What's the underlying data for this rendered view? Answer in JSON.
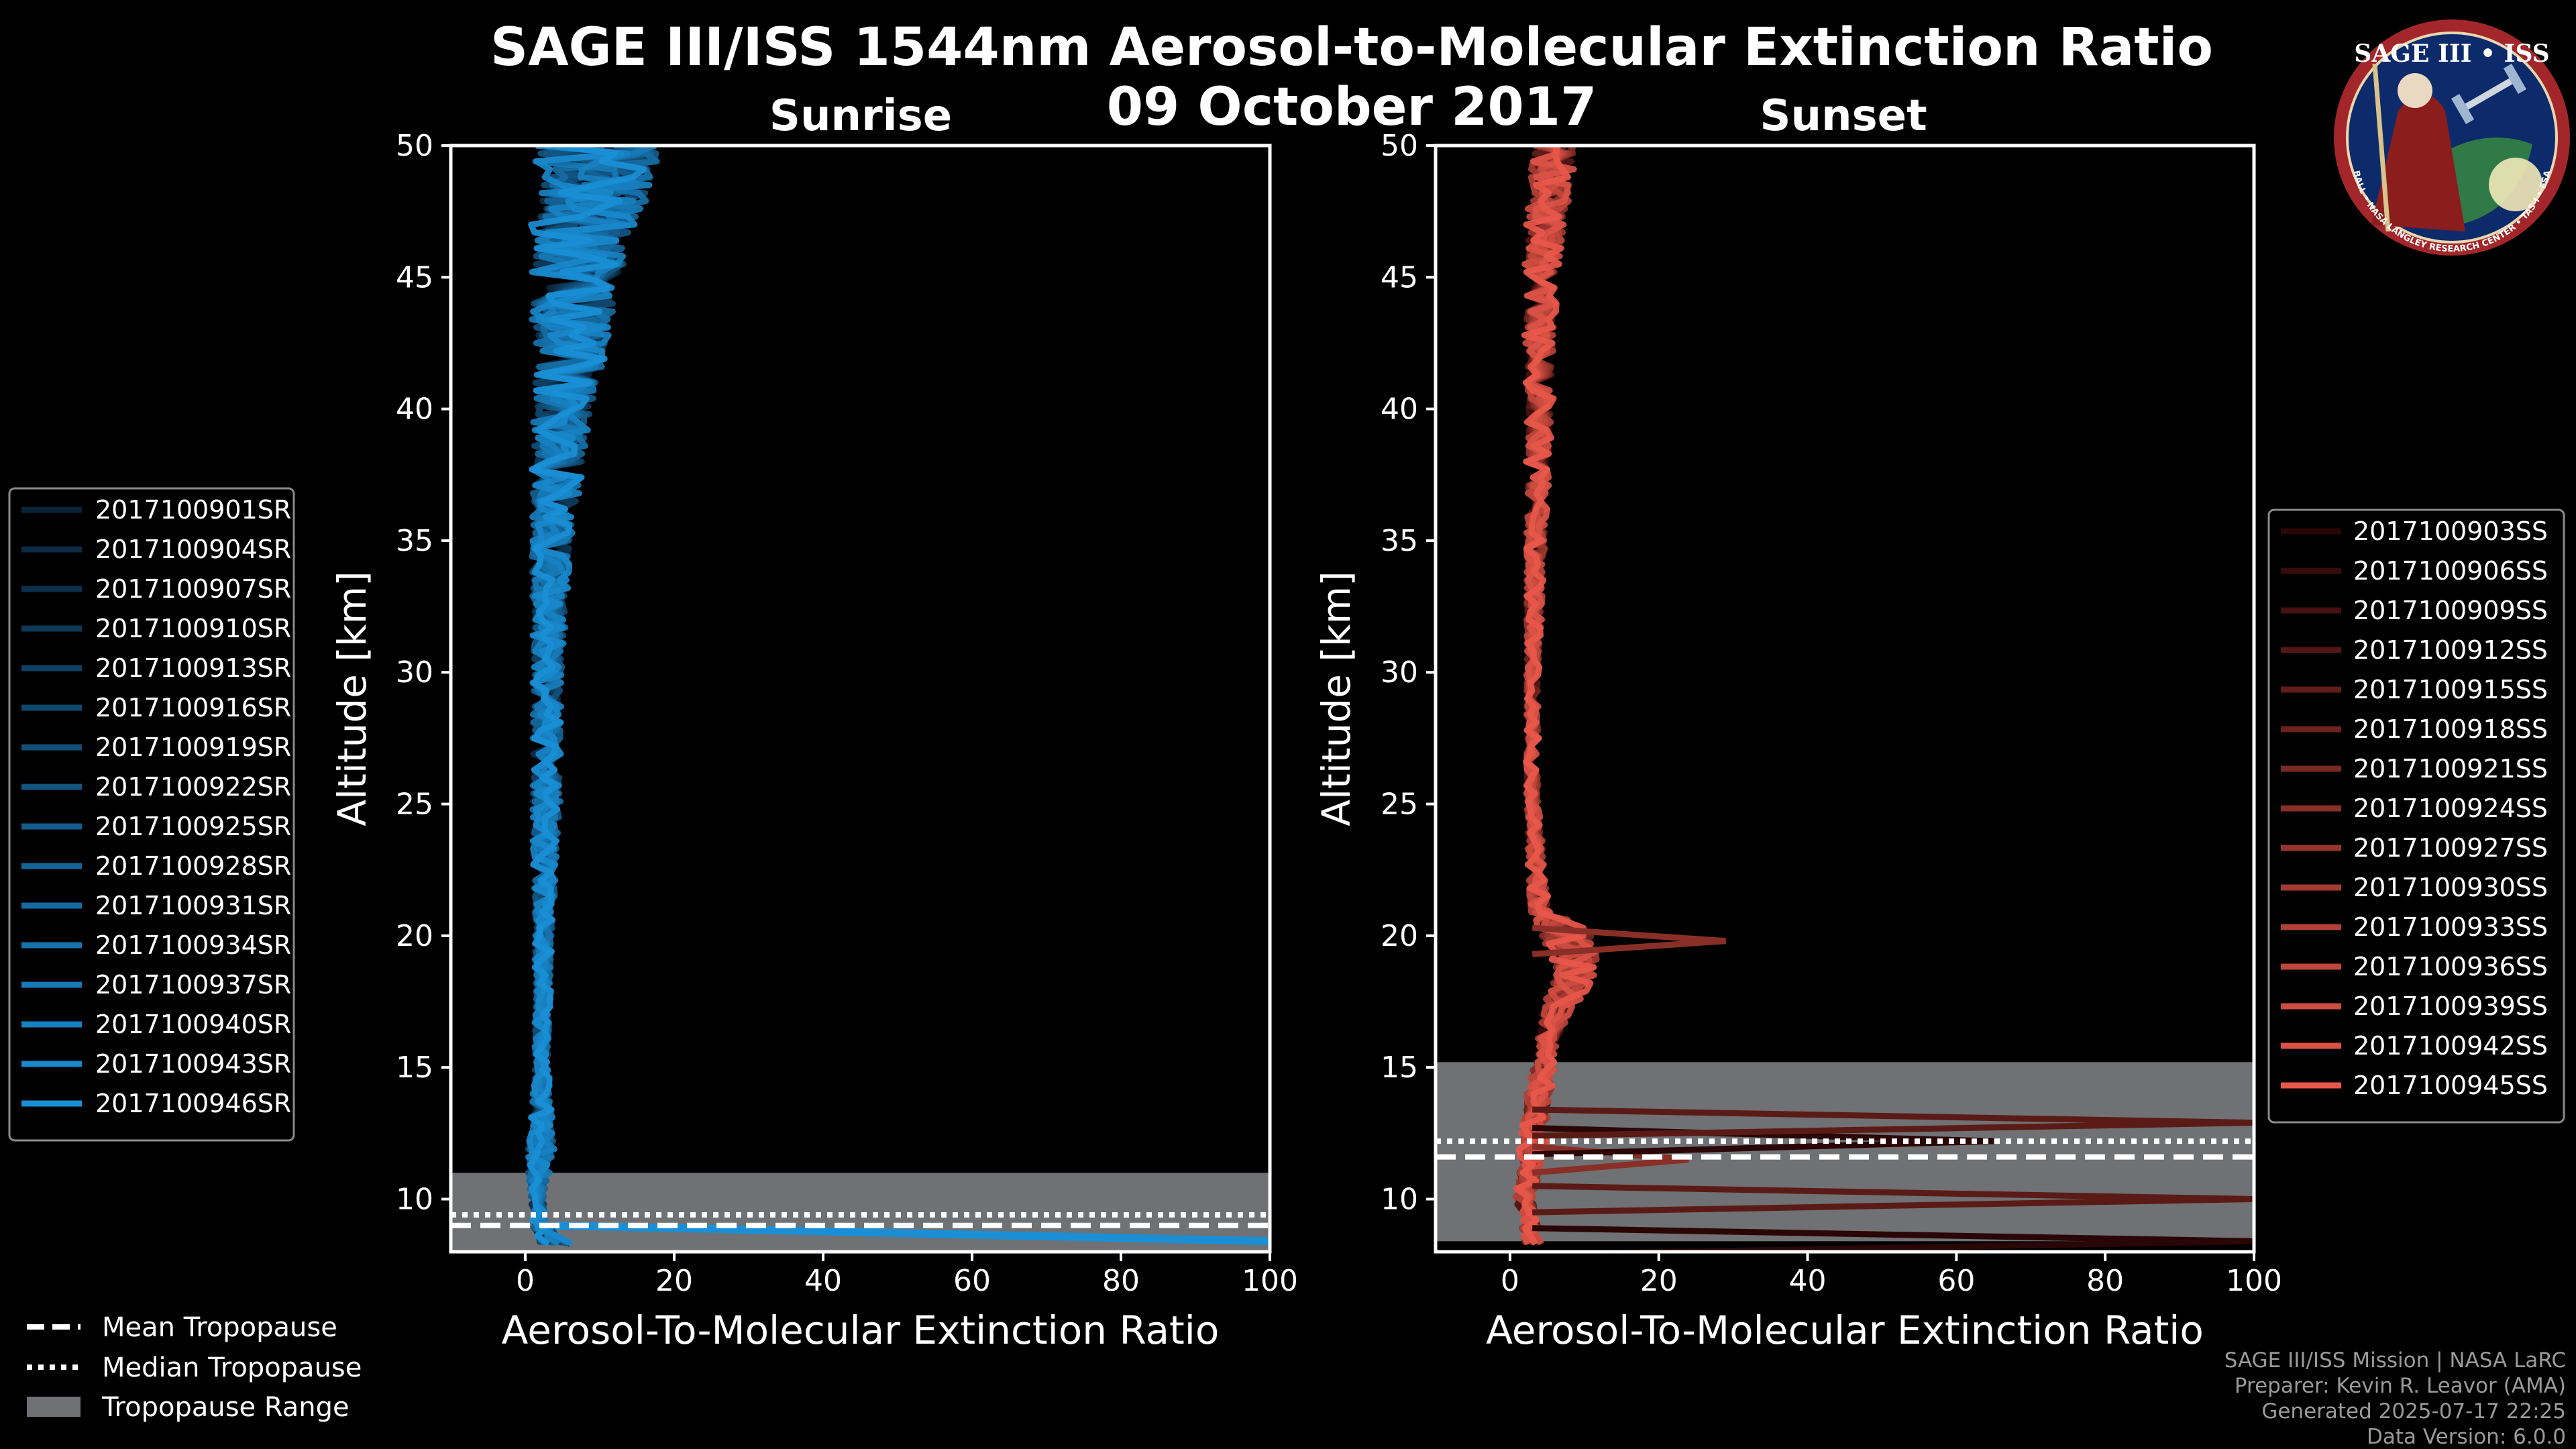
{
  "title": {
    "line1": "SAGE III/ISS 1544nm Aerosol-to-Molecular Extinction Ratio",
    "line2": "09 October 2017"
  },
  "chart_data": [
    {
      "type": "line",
      "panel": "sunrise",
      "title": "Sunrise",
      "xlabel": "Aerosol-To-Molecular Extinction Ratio",
      "ylabel": "Altitude [km]",
      "xlim": [
        -10,
        100
      ],
      "ylim": [
        8,
        50
      ],
      "xticks": [
        0,
        20,
        40,
        60,
        80,
        100
      ],
      "yticks": [
        10,
        15,
        20,
        25,
        30,
        35,
        40,
        45,
        50
      ],
      "color_from": "#0b2338",
      "color_to": "#1a8fd6",
      "tropopause": {
        "mean": 9.0,
        "median": 9.4,
        "range": [
          8.0,
          11.0
        ]
      },
      "profile_envelope": {
        "altitude": [
          8.4,
          9,
          10,
          11,
          12,
          15,
          20,
          25,
          30,
          35,
          40,
          45,
          50
        ],
        "median_ratio": [
          4,
          2,
          1.6,
          1.8,
          2,
          2.2,
          2.5,
          2.8,
          3,
          3.5,
          5,
          7,
          10
        ],
        "spread": [
          3,
          1.5,
          1.2,
          2,
          2.5,
          1.2,
          1.5,
          2.5,
          2.5,
          3.5,
          5,
          8,
          11
        ]
      },
      "series": [
        {
          "name": "2017100901SR"
        },
        {
          "name": "2017100904SR"
        },
        {
          "name": "2017100907SR"
        },
        {
          "name": "2017100910SR"
        },
        {
          "name": "2017100913SR"
        },
        {
          "name": "2017100916SR"
        },
        {
          "name": "2017100919SR"
        },
        {
          "name": "2017100922SR"
        },
        {
          "name": "2017100925SR"
        },
        {
          "name": "2017100928SR"
        },
        {
          "name": "2017100931SR"
        },
        {
          "name": "2017100934SR"
        },
        {
          "name": "2017100937SR"
        },
        {
          "name": "2017100940SR"
        },
        {
          "name": "2017100943SR"
        },
        {
          "name": "2017100946SR"
        }
      ]
    },
    {
      "type": "line",
      "panel": "sunset",
      "title": "Sunset",
      "xlabel": "Aerosol-To-Molecular Extinction Ratio",
      "ylabel": "Altitude [km]",
      "xlim": [
        -10,
        100
      ],
      "ylim": [
        8,
        50
      ],
      "xticks": [
        0,
        20,
        40,
        60,
        80,
        100
      ],
      "yticks": [
        10,
        15,
        20,
        25,
        30,
        35,
        40,
        45,
        50
      ],
      "color_from": "#2a0606",
      "color_to": "#e8584a",
      "tropopause": {
        "mean": 11.6,
        "median": 12.2,
        "range": [
          8.4,
          15.2
        ]
      },
      "profile_envelope": {
        "altitude": [
          8.4,
          10,
          12,
          14,
          16,
          17,
          18,
          19,
          20,
          21,
          25,
          30,
          35,
          40,
          45,
          50
        ],
        "median_ratio": [
          3,
          2,
          3,
          4,
          5,
          6,
          8,
          9,
          8,
          4,
          3,
          3,
          3.5,
          4,
          4,
          6
        ],
        "spread": [
          3,
          3,
          4,
          4,
          3,
          5,
          6,
          7,
          9,
          3,
          2,
          2,
          3,
          4,
          5,
          7
        ]
      },
      "outliers": [
        {
          "altitude": 8.4,
          "ratio": 100
        },
        {
          "altitude": 10.0,
          "ratio": 100
        },
        {
          "altitude": 11.5,
          "ratio": 24
        },
        {
          "altitude": 12.2,
          "ratio": 65
        },
        {
          "altitude": 12.9,
          "ratio": 100
        },
        {
          "altitude": 19.8,
          "ratio": 29
        }
      ],
      "series": [
        {
          "name": "2017100903SS"
        },
        {
          "name": "2017100906SS"
        },
        {
          "name": "2017100909SS"
        },
        {
          "name": "2017100912SS"
        },
        {
          "name": "2017100915SS"
        },
        {
          "name": "2017100918SS"
        },
        {
          "name": "2017100921SS"
        },
        {
          "name": "2017100924SS"
        },
        {
          "name": "2017100927SS"
        },
        {
          "name": "2017100930SS"
        },
        {
          "name": "2017100933SS"
        },
        {
          "name": "2017100936SS"
        },
        {
          "name": "2017100939SS"
        },
        {
          "name": "2017100942SS"
        },
        {
          "name": "2017100945SS"
        }
      ]
    }
  ],
  "tropopause_legend": {
    "mean": "Mean Tropopause",
    "median": "Median Tropopause",
    "range": "Tropopause Range"
  },
  "credits": {
    "line1": "SAGE III/ISS Mission | NASA LaRC",
    "line2": "Preparer: Kevin R. Leavor (AMA)",
    "line3": "Generated 2025-07-17 22:25",
    "line4": "Data Version: 6.0.0"
  },
  "logo": {
    "name": "SAGE III • ISS",
    "ring_text": "BALL • NASA LANGLEY RESEARCH CENTER • TAS-I • ESA"
  },
  "colors": {
    "background": "#000000",
    "sunrise_line": "#1a8fd6",
    "sunset_line": "#e8584a",
    "tropopause_range": "#6f7174"
  }
}
